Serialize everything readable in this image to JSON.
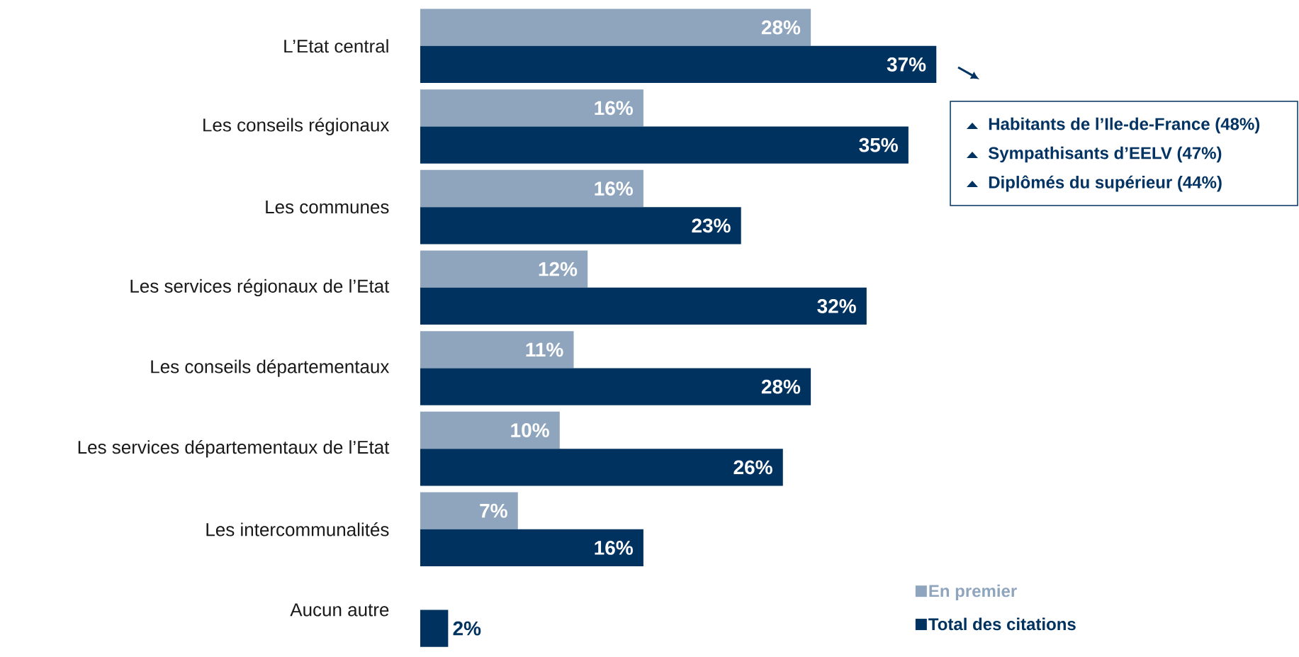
{
  "chart_data": {
    "type": "bar",
    "orientation": "horizontal",
    "categories": [
      "L’Etat central",
      "Les conseils régionaux",
      "Les communes",
      "Les services régionaux de l’Etat",
      "Les conseils départementaux",
      "Les services départementaux de l’Etat",
      "Les intercommunalités",
      "Aucun autre"
    ],
    "series": [
      {
        "name": "En premier",
        "color": "#8fa5bd",
        "values": [
          28,
          16,
          16,
          12,
          11,
          10,
          7,
          null
        ],
        "value_labels": [
          "28%",
          "16%",
          "16%",
          "12%",
          "11%",
          "10%",
          "7%",
          null
        ]
      },
      {
        "name": "Total des citations",
        "color": "#00325f",
        "values": [
          37,
          35,
          23,
          32,
          28,
          26,
          16,
          2
        ],
        "value_labels": [
          "37%",
          "35%",
          "23%",
          "32%",
          "28%",
          "26%",
          "16%",
          "2%"
        ]
      }
    ],
    "xlim": [
      0,
      63
    ],
    "legend": "bottom right",
    "tick_labels": "y",
    "annotations": [
      "Habitants de l’Ile-de-France (48%)",
      "Sympathisants d’EELV (47%)",
      "Diplômés du supérieur (44%)"
    ]
  }
}
